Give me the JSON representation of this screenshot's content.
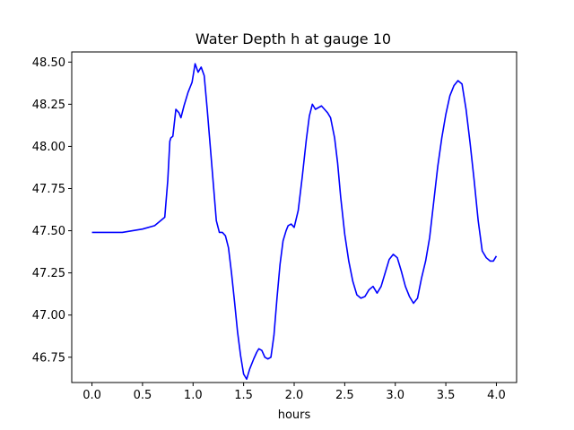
{
  "chart_data": {
    "type": "line",
    "title": "Water Depth h at gauge 10",
    "xlabel": "hours",
    "ylabel": "",
    "xlim": [
      -0.2,
      4.2
    ],
    "ylim": [
      46.6,
      48.56
    ],
    "grid": false,
    "color": "#0000ff",
    "xticks": [
      "0.0",
      "0.5",
      "1.0",
      "1.5",
      "2.0",
      "2.5",
      "3.0",
      "3.5",
      "4.0"
    ],
    "yticks": [
      "46.75",
      "47.00",
      "47.25",
      "47.50",
      "47.75",
      "48.00",
      "48.25",
      "48.50"
    ],
    "series": [
      {
        "name": "",
        "x": [
          0.0,
          0.3,
          0.5,
          0.62,
          0.68,
          0.72,
          0.75,
          0.77,
          0.78,
          0.8,
          0.83,
          0.86,
          0.88,
          0.91,
          0.95,
          0.99,
          1.02,
          1.05,
          1.08,
          1.11,
          1.14,
          1.17,
          1.2,
          1.23,
          1.26,
          1.29,
          1.32,
          1.35,
          1.38,
          1.41,
          1.44,
          1.47,
          1.5,
          1.53,
          1.56,
          1.6,
          1.63,
          1.65,
          1.68,
          1.71,
          1.74,
          1.77,
          1.8,
          1.83,
          1.86,
          1.89,
          1.92,
          1.94,
          1.97,
          2.0,
          2.04,
          2.08,
          2.12,
          2.15,
          2.18,
          2.21,
          2.24,
          2.27,
          2.3,
          2.33,
          2.36,
          2.4,
          2.43,
          2.46,
          2.5,
          2.54,
          2.58,
          2.62,
          2.66,
          2.7,
          2.74,
          2.78,
          2.82,
          2.86,
          2.9,
          2.94,
          2.98,
          3.02,
          3.06,
          3.1,
          3.14,
          3.18,
          3.22,
          3.26,
          3.3,
          3.34,
          3.38,
          3.42,
          3.46,
          3.5,
          3.54,
          3.58,
          3.62,
          3.66,
          3.7,
          3.74,
          3.78,
          3.82,
          3.86,
          3.9,
          3.94,
          3.97,
          4.0
        ],
        "values": [
          47.49,
          47.49,
          47.51,
          47.53,
          47.56,
          47.58,
          47.8,
          48.03,
          48.05,
          48.06,
          48.22,
          48.2,
          48.17,
          48.24,
          48.32,
          48.38,
          48.49,
          48.44,
          48.47,
          48.42,
          48.22,
          48.0,
          47.78,
          47.56,
          47.49,
          47.49,
          47.47,
          47.4,
          47.25,
          47.08,
          46.9,
          46.76,
          46.65,
          46.62,
          46.68,
          46.74,
          46.78,
          46.8,
          46.79,
          46.75,
          46.74,
          46.75,
          46.88,
          47.1,
          47.3,
          47.44,
          47.5,
          47.53,
          47.54,
          47.52,
          47.62,
          47.82,
          48.04,
          48.18,
          48.25,
          48.22,
          48.23,
          48.24,
          48.22,
          48.2,
          48.17,
          48.05,
          47.9,
          47.7,
          47.48,
          47.32,
          47.2,
          47.12,
          47.1,
          47.11,
          47.15,
          47.17,
          47.13,
          47.17,
          47.25,
          47.33,
          47.36,
          47.34,
          47.26,
          47.17,
          47.11,
          47.07,
          47.1,
          47.22,
          47.32,
          47.46,
          47.67,
          47.88,
          48.05,
          48.19,
          48.3,
          48.36,
          48.39,
          48.37,
          48.22,
          48.02,
          47.8,
          47.56,
          47.38,
          47.34,
          47.32,
          47.32,
          47.35
        ]
      }
    ]
  }
}
